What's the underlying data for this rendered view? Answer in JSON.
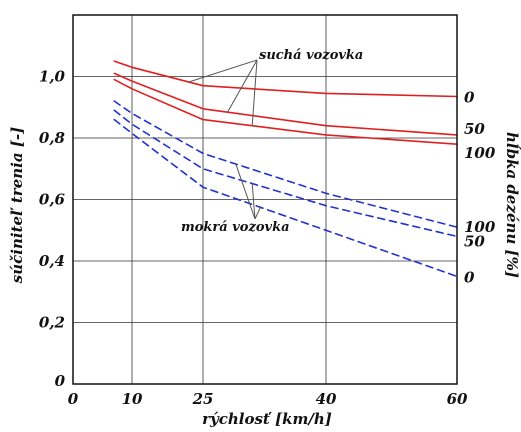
{
  "chart_data": {
    "type": "line",
    "xlabel": "rýchlosť [km/h]",
    "ylabel": "súčiniteľ trenia [-]",
    "y2label": "hĺbka dezénu [%]",
    "x_ticks": [
      0,
      10,
      25,
      40,
      60
    ],
    "y_ticks": [
      "0",
      "0,2",
      "0,4",
      "0,6",
      "0,8",
      "1,0"
    ],
    "y_tick_values": [
      0,
      0.2,
      0.4,
      0.6,
      0.8,
      1.0
    ],
    "ylim": [
      0,
      1.2
    ],
    "grid": true,
    "colors": {
      "dry": "#e02020",
      "wet": "#2233cc"
    },
    "annotations": {
      "dry": "suchá vozovka",
      "wet": "mokrá vozovka"
    },
    "series": [
      {
        "group": "dry",
        "tread": "0",
        "end_label": "0",
        "x": [
          7,
          10,
          25,
          40,
          60
        ],
        "y": [
          1.05,
          1.03,
          0.97,
          0.945,
          0.935
        ]
      },
      {
        "group": "dry",
        "tread": "50",
        "end_label": "50",
        "x": [
          7,
          10,
          25,
          40,
          60
        ],
        "y": [
          1.01,
          0.985,
          0.895,
          0.84,
          0.81
        ]
      },
      {
        "group": "dry",
        "tread": "100",
        "end_label": "100",
        "x": [
          7,
          10,
          25,
          40,
          60
        ],
        "y": [
          0.99,
          0.96,
          0.86,
          0.81,
          0.78
        ]
      },
      {
        "group": "wet",
        "tread": "100",
        "end_label": "100",
        "x": [
          7,
          10,
          25,
          40,
          60
        ],
        "y": [
          0.92,
          0.88,
          0.75,
          0.62,
          0.51
        ]
      },
      {
        "group": "wet",
        "tread": "50",
        "end_label": "50",
        "x": [
          7,
          10,
          25,
          40,
          60
        ],
        "y": [
          0.89,
          0.845,
          0.7,
          0.58,
          0.48
        ]
      },
      {
        "group": "wet",
        "tread": "0",
        "end_label": "0",
        "x": [
          7,
          10,
          25,
          40,
          60
        ],
        "y": [
          0.86,
          0.815,
          0.64,
          0.5,
          0.35
        ]
      }
    ]
  }
}
